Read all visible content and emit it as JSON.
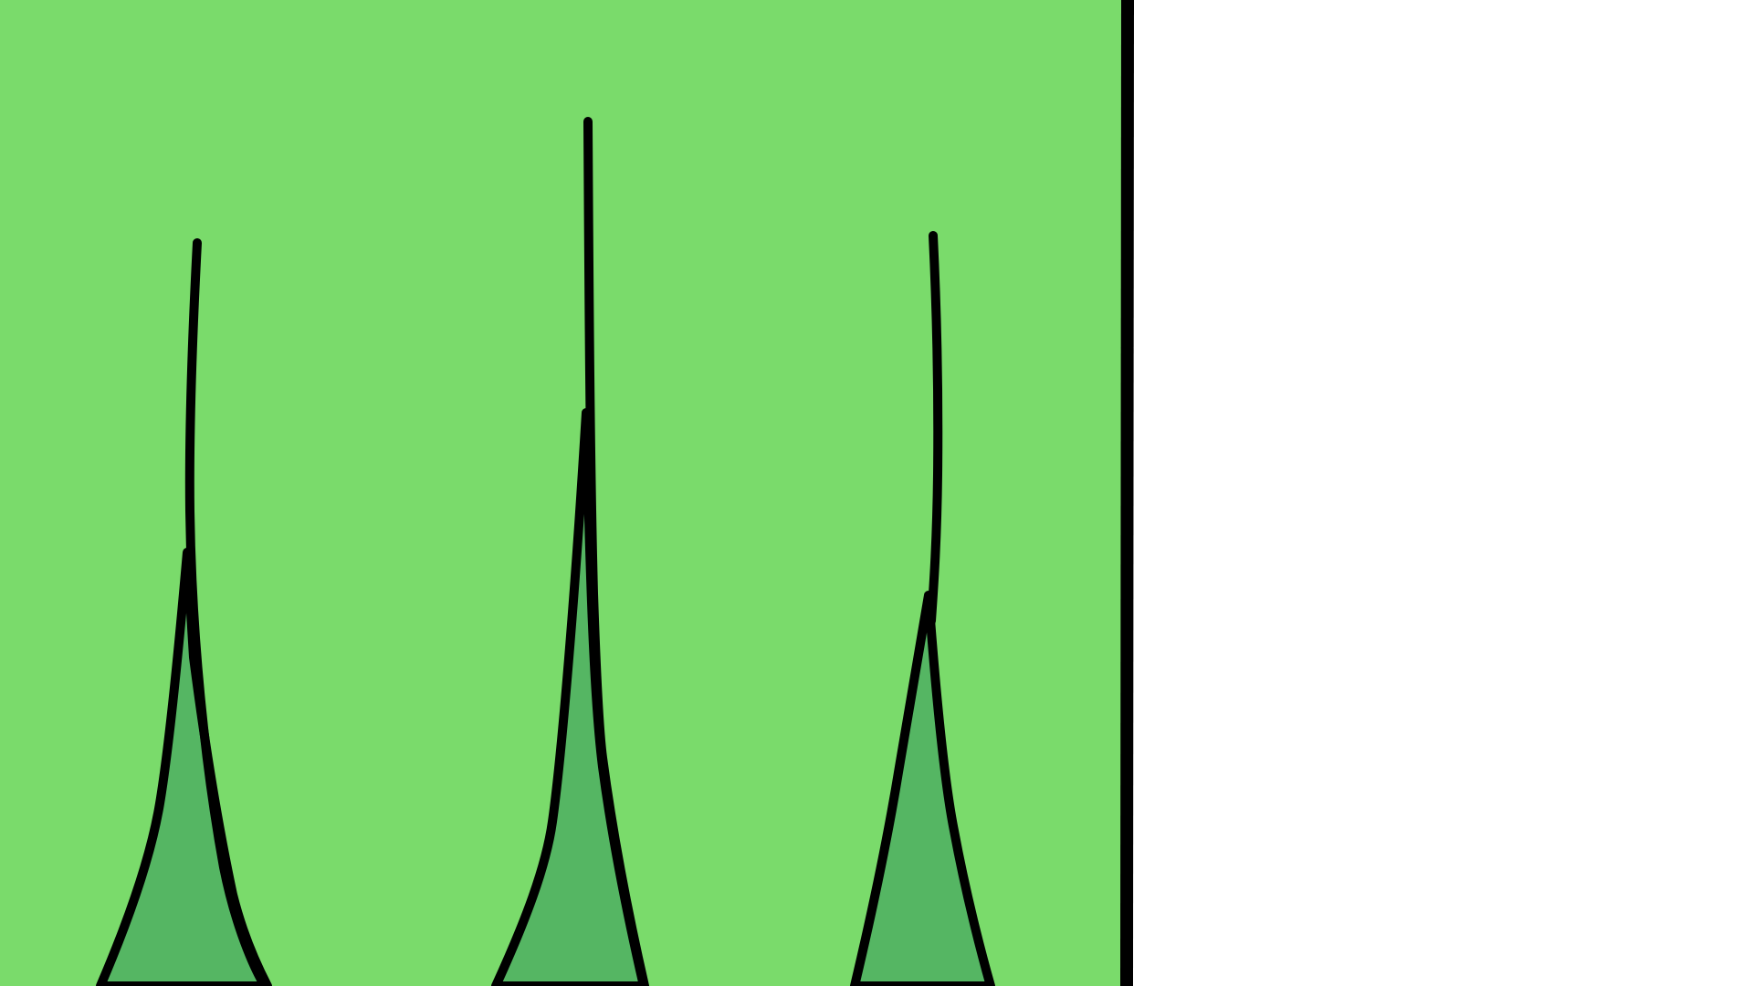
{
  "scene": {
    "panel_color": "#7ADB6B",
    "background_color": "#FFFFFF",
    "blade_fill_color": "#55B663",
    "outline_color": "#000000",
    "elements": [
      {
        "kind": "grass-panel",
        "icon": "grass-background"
      },
      {
        "kind": "grass-tuft",
        "icon": "grass-tuft-left",
        "count_blades": 2
      },
      {
        "kind": "grass-tuft",
        "icon": "grass-tuft-center",
        "count_blades": 2
      },
      {
        "kind": "grass-tuft",
        "icon": "grass-tuft-right",
        "count_blades": 2
      },
      {
        "kind": "divider",
        "icon": "panel-edge-line"
      }
    ]
  }
}
